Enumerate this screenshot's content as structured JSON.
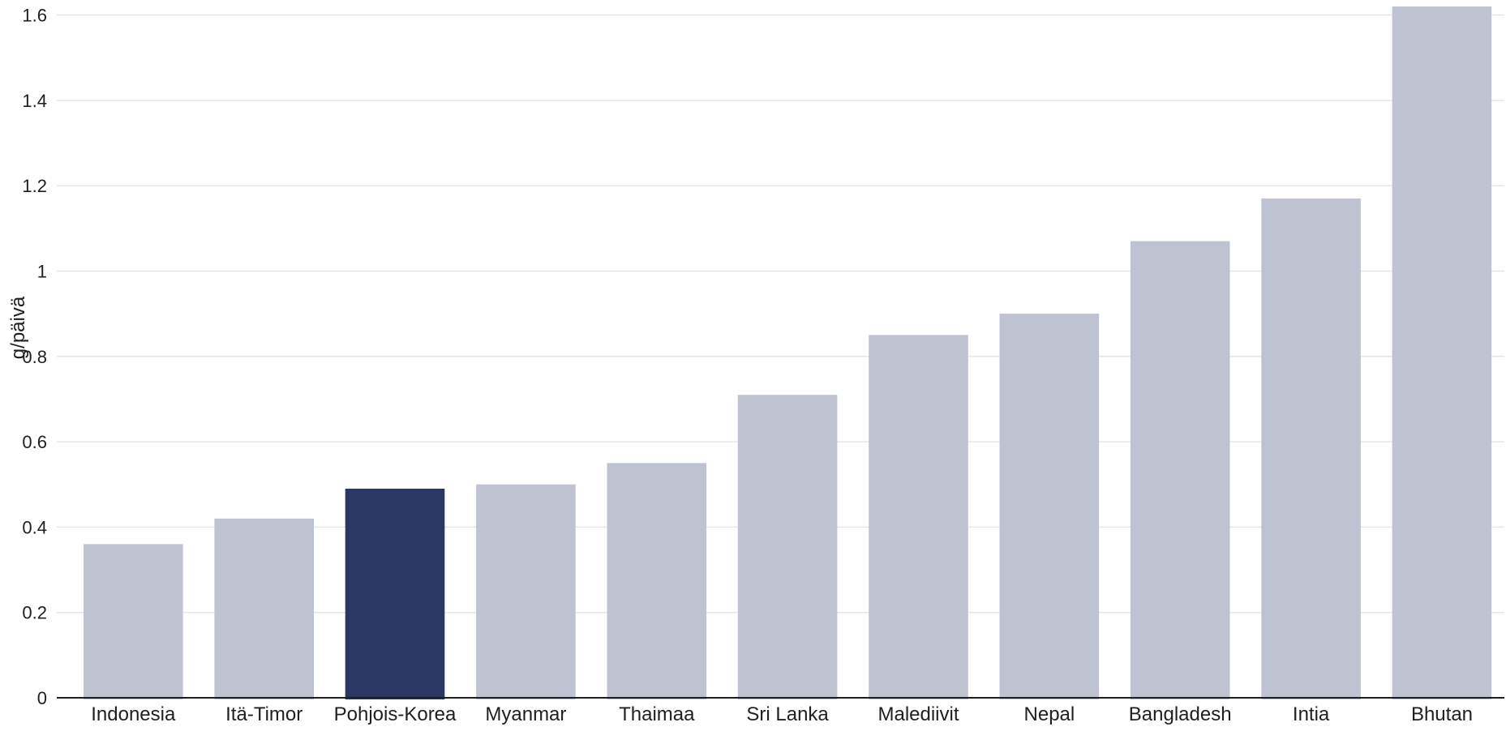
{
  "chart_data": {
    "type": "bar",
    "title": "",
    "xlabel": "",
    "ylabel": "g/päivä",
    "ylim": [
      0,
      1.62
    ],
    "yticks": [
      0,
      0.2,
      0.4,
      0.6,
      0.8,
      1,
      1.2,
      1.4,
      1.6
    ],
    "ytick_labels": [
      "0",
      "0.2",
      "0.4",
      "0.6",
      "0.8",
      "1",
      "1.2",
      "1.4",
      "1.6"
    ],
    "grid": true,
    "categories": [
      "Indonesia",
      "Itä-Timor",
      "Pohjois-Korea",
      "Myanmar",
      "Thaimaa",
      "Sri Lanka",
      "Malediivit",
      "Nepal",
      "Bangladesh",
      "Intia",
      "Bhutan"
    ],
    "values": [
      0.36,
      0.42,
      0.49,
      0.5,
      0.55,
      0.71,
      0.85,
      0.9,
      1.07,
      1.17,
      1.62
    ],
    "highlight": "Pohjois-Korea",
    "colors": {
      "bar": "#bfc3d1",
      "highlight": "#2b3762",
      "grid": "#e6e6e6",
      "axis": "#1f1f1f"
    }
  }
}
